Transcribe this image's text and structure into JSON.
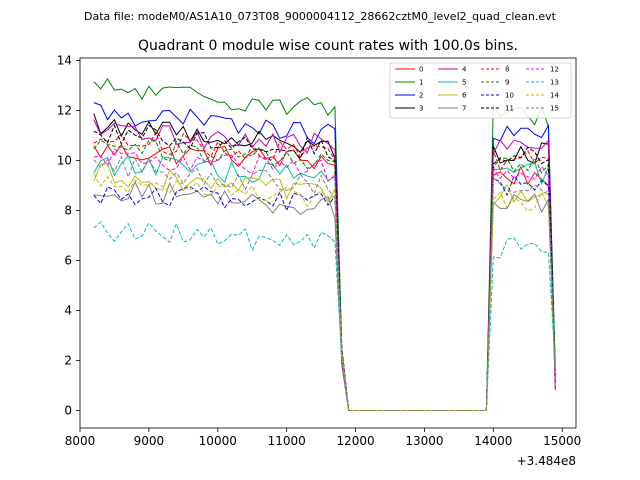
{
  "header_text": "Data file: modeM0/AS1A10_073T08_9000004112_28662cztM0_level2_quad_clean.evt",
  "chart_data": {
    "type": "line",
    "title": "Quadrant 0 module wise count rates with 100.0s bins.",
    "xlabel": "",
    "ylabel": "",
    "x_offset_label": "+3.484e8",
    "xlim": [
      8000,
      15200
    ],
    "ylim": [
      -0.7,
      14.1
    ],
    "x_ticks": [
      8000,
      9000,
      10000,
      11000,
      12000,
      13000,
      14000,
      15000
    ],
    "x_tick_labels": [
      "8000",
      "9000",
      "10000",
      "11000",
      "12000",
      "13000",
      "14000",
      "15000"
    ],
    "y_ticks": [
      0,
      2,
      4,
      6,
      8,
      10,
      12,
      14
    ],
    "y_tick_labels": [
      "0",
      "2",
      "4",
      "6",
      "8",
      "10",
      "12",
      "14"
    ],
    "grid": false,
    "legend_position": "top-right",
    "legend_columns": 4,
    "series": [
      {
        "name": "0",
        "color": "#ff0000",
        "dash": false,
        "seg1_base": 10.4,
        "seg1_end": 10.0,
        "seg2_base": 9.4
      },
      {
        "name": "1",
        "color": "#008000",
        "dash": false,
        "seg1_base": 12.9,
        "seg1_end": 12.1,
        "seg2_base": 11.8
      },
      {
        "name": "2",
        "color": "#0000ff",
        "dash": false,
        "seg1_base": 12.0,
        "seg1_end": 11.0,
        "seg2_base": 11.0
      },
      {
        "name": "3",
        "color": "#000000",
        "dash": false,
        "seg1_base": 11.5,
        "seg1_end": 10.5,
        "seg2_base": 10.3
      },
      {
        "name": "4",
        "color": "#bf00bf",
        "dash": false,
        "seg1_base": 11.2,
        "seg1_end": 10.6,
        "seg2_base": 10.5
      },
      {
        "name": "5",
        "color": "#00bf9f",
        "dash": false,
        "seg1_base": 9.9,
        "seg1_end": 9.3,
        "seg2_base": 9.5
      },
      {
        "name": "6",
        "color": "#bfbf00",
        "dash": false,
        "seg1_base": 9.5,
        "seg1_end": 8.6,
        "seg2_base": 8.6
      },
      {
        "name": "7",
        "color": "#808080",
        "dash": false,
        "seg1_base": 8.9,
        "seg1_end": 8.1,
        "seg2_base": 8.3
      },
      {
        "name": "8",
        "color": "#ff0000",
        "dash": true,
        "seg1_base": 10.9,
        "seg1_end": 10.2,
        "seg2_base": 10.0
      },
      {
        "name": "9",
        "color": "#008000",
        "dash": true,
        "seg1_base": 10.6,
        "seg1_end": 9.9,
        "seg2_base": 9.8
      },
      {
        "name": "10",
        "color": "#0000ff",
        "dash": true,
        "seg1_base": 8.7,
        "seg1_end": 8.3,
        "seg2_base": 9.0
      },
      {
        "name": "11",
        "color": "#000000",
        "dash": true,
        "seg1_base": 11.2,
        "seg1_end": 10.4,
        "seg2_base": 10.1
      },
      {
        "name": "12",
        "color": "#ff00ff",
        "dash": true,
        "seg1_base": 10.1,
        "seg1_end": 9.6,
        "seg2_base": 9.5
      },
      {
        "name": "13",
        "color": "#00bfbf",
        "dash": true,
        "seg1_base": 7.2,
        "seg1_end": 6.7,
        "seg2_base": 6.5
      },
      {
        "name": "14",
        "color": "#bfbf00",
        "dash": true,
        "seg1_base": 9.3,
        "seg1_end": 8.3,
        "seg2_base": 8.4
      },
      {
        "name": "15",
        "color": "#808080",
        "dash": true,
        "seg1_base": 9.8,
        "seg1_end": 8.9,
        "seg2_base": 8.9
      }
    ],
    "segments": {
      "seg1_x_start": 8200,
      "seg1_x_end": 11700,
      "drop_x": [
        11800,
        11900
      ],
      "zero_x_start": 11900,
      "zero_x_end": 13900,
      "seg2_x_start": 14000,
      "seg2_x_end": 14800,
      "final_x": 14900,
      "step": 100
    }
  }
}
